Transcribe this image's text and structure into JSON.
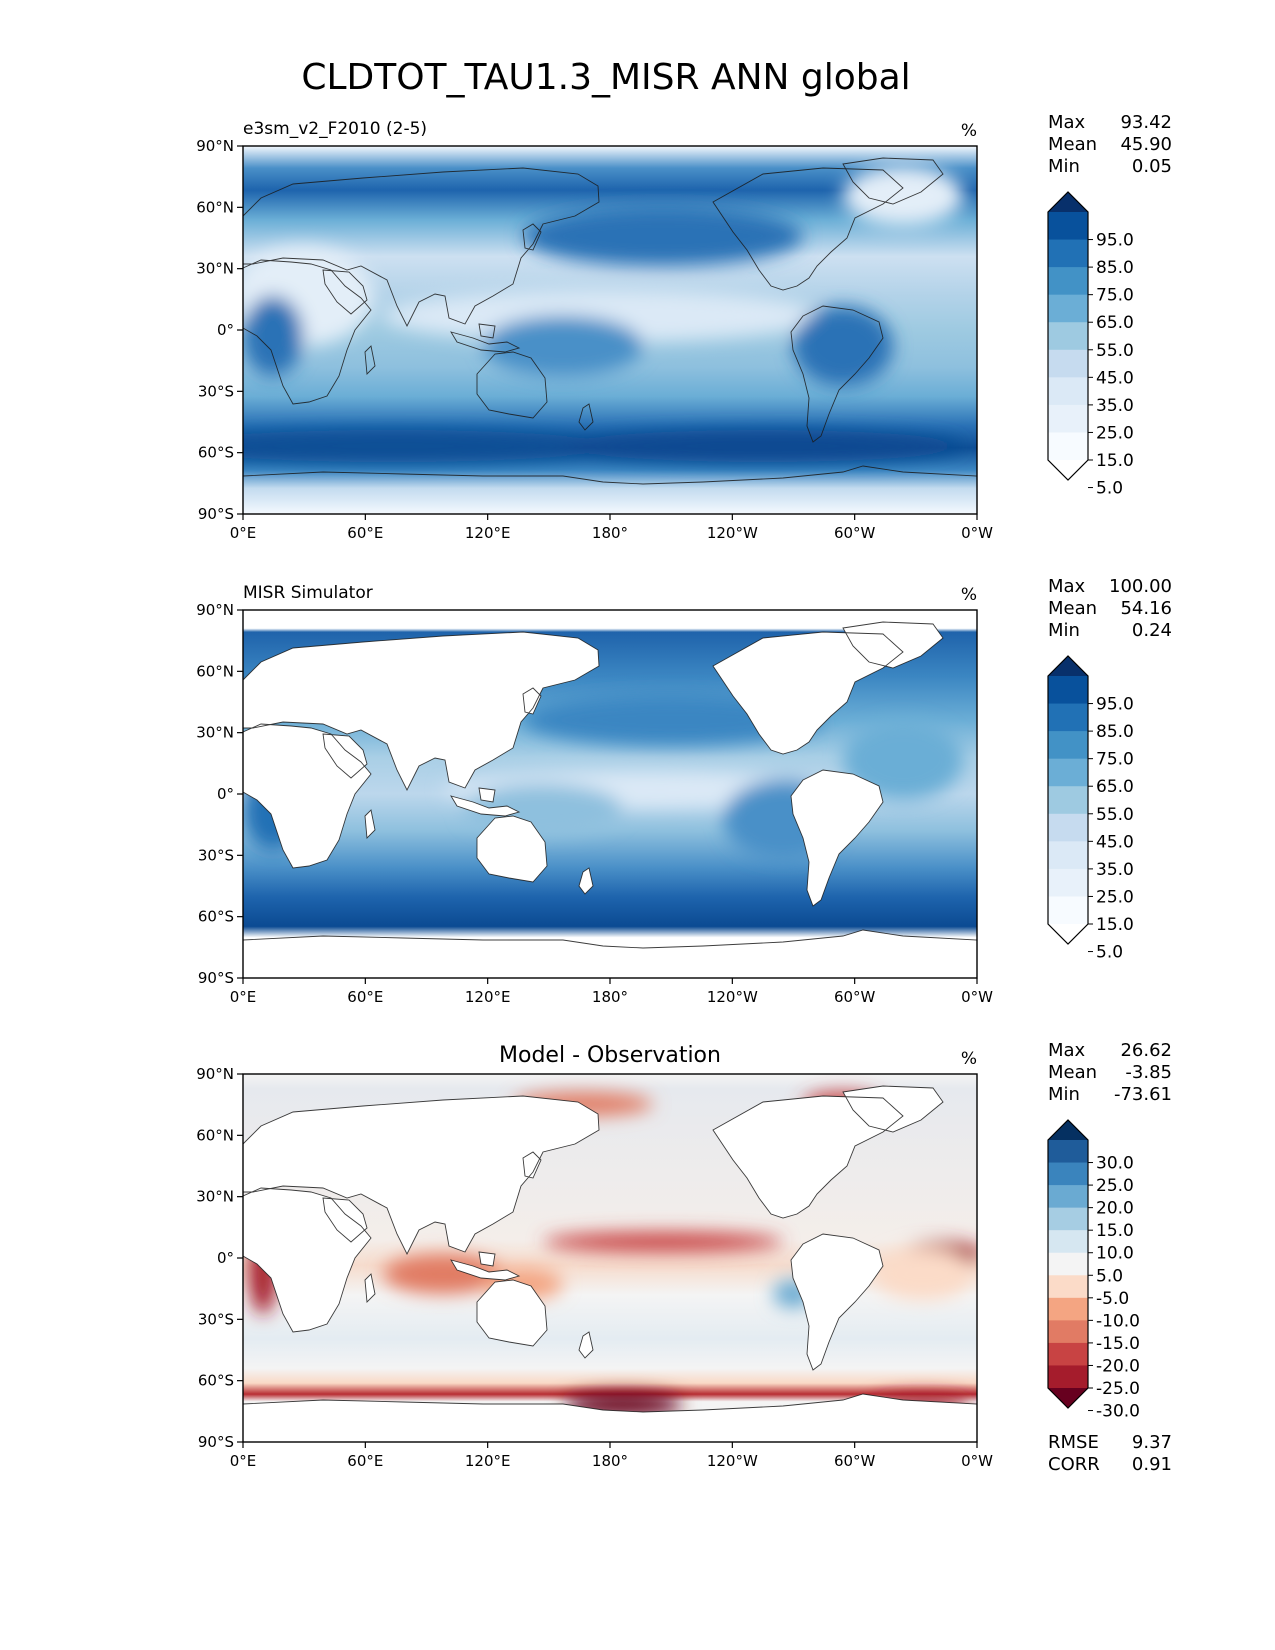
{
  "title": "CLDTOT_TAU1.3_MISR ANN global",
  "chart_data": [
    {
      "type": "heatmap",
      "id": "model",
      "title_left": "e3sm_v2_F2010 (2-5)",
      "title_center": "",
      "units": "%",
      "stats": [
        {
          "label": "Max",
          "value": "93.42"
        },
        {
          "label": "Mean",
          "value": "45.90"
        },
        {
          "label": "Min",
          "value": "0.05"
        }
      ],
      "colorbar": {
        "levels": [
          "95.0",
          "85.0",
          "75.0",
          "65.0",
          "55.0",
          "45.0",
          "35.0",
          "25.0",
          "15.0",
          "5.0"
        ],
        "colors": [
          "#08306b",
          "#08519c",
          "#2171b5",
          "#4292c6",
          "#6baed6",
          "#9ecae1",
          "#c6dbef",
          "#dbe9f6",
          "#e8f1fa",
          "#f7fbff",
          "#ffffff"
        ]
      },
      "lat_ticks": [
        "90°N",
        "60°N",
        "30°N",
        "0°",
        "30°S",
        "60°S",
        "90°S"
      ],
      "lon_ticks": [
        "0°E",
        "60°E",
        "120°E",
        "180°",
        "120°W",
        "60°W",
        "0°W"
      ],
      "xlim": [
        0,
        360
      ],
      "ylim": [
        -90,
        90
      ]
    },
    {
      "type": "heatmap",
      "id": "obs",
      "title_left": "MISR Simulator",
      "title_center": "",
      "units": "%",
      "stats": [
        {
          "label": "Max",
          "value": "100.00"
        },
        {
          "label": "Mean",
          "value": "54.16"
        },
        {
          "label": "Min",
          "value": "0.24"
        }
      ],
      "colorbar": {
        "levels": [
          "95.0",
          "85.0",
          "75.0",
          "65.0",
          "55.0",
          "45.0",
          "35.0",
          "25.0",
          "15.0",
          "5.0"
        ],
        "colors": [
          "#08306b",
          "#08519c",
          "#2171b5",
          "#4292c6",
          "#6baed6",
          "#9ecae1",
          "#c6dbef",
          "#dbe9f6",
          "#e8f1fa",
          "#f7fbff",
          "#ffffff"
        ]
      },
      "lat_ticks": [
        "90°N",
        "60°N",
        "30°N",
        "0°",
        "30°S",
        "60°S",
        "90°S"
      ],
      "lon_ticks": [
        "0°E",
        "60°E",
        "120°E",
        "180°",
        "120°W",
        "60°W",
        "0°W"
      ],
      "xlim": [
        0,
        360
      ],
      "ylim": [
        -90,
        90
      ]
    },
    {
      "type": "heatmap",
      "id": "diff",
      "title_left": "",
      "title_center": "Model - Observation",
      "units": "%",
      "stats": [
        {
          "label": "Max",
          "value": "26.62"
        },
        {
          "label": "Mean",
          "value": "-3.85"
        },
        {
          "label": "Min",
          "value": "-73.61"
        }
      ],
      "colorbar": {
        "levels": [
          "30.0",
          "25.0",
          "20.0",
          "15.0",
          "10.0",
          "5.0",
          "-5.0",
          "-10.0",
          "-15.0",
          "-20.0",
          "-25.0",
          "-30.0"
        ],
        "colors": [
          "#053061",
          "#1f5c9a",
          "#3a84bd",
          "#6aaad2",
          "#a6cde3",
          "#d6e7f1",
          "#f4f4f4",
          "#fbdbc8",
          "#f4a582",
          "#e17b64",
          "#c84343",
          "#a51c2c",
          "#67001f"
        ]
      },
      "lat_ticks": [
        "90°N",
        "60°N",
        "30°N",
        "0°",
        "30°S",
        "60°S",
        "90°S"
      ],
      "lon_ticks": [
        "0°E",
        "60°E",
        "120°E",
        "180°",
        "120°W",
        "60°W",
        "0°W"
      ],
      "xlim": [
        0,
        360
      ],
      "ylim": [
        -90,
        90
      ],
      "metrics": [
        {
          "label": "RMSE",
          "value": "9.37"
        },
        {
          "label": "CORR",
          "value": "0.91"
        }
      ]
    }
  ]
}
